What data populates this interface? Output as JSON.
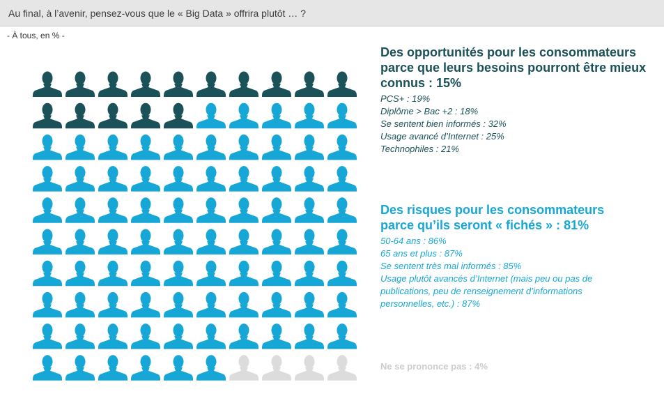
{
  "header": {
    "question": "Au final, à l’avenir, pensez-vous que le « Big Data » offrira plutôt … ?"
  },
  "base": "- À tous, en % -",
  "colors": {
    "opportunities": "#1b5158",
    "risks": "#17a7d6",
    "no_answer": "#dcdcdc"
  },
  "icon": "person-icon",
  "chart_data": {
    "type": "icon-array",
    "total": 100,
    "rows": 10,
    "cols": 10,
    "series": [
      {
        "name": "Des opportunités pour les consommateurs parce que leurs besoins pourront être mieux connus",
        "value": 15,
        "color": "#1b5158"
      },
      {
        "name": "Des risques pour les consommateurs parce qu’ils seront « fichés »",
        "value": 81,
        "color": "#17a7d6"
      },
      {
        "name": "Ne se prononce pas",
        "value": 4,
        "color": "#dcdcdc"
      }
    ]
  },
  "opportunities": {
    "title": "Des opportunités pour les consommateurs parce que leurs besoins pourront être mieux connus : 15%",
    "details": [
      "PCS+ : 19%",
      "Diplôme > Bac +2 : 18%",
      "Se sentent bien informés : 32%",
      "Usage avancé d’Internet : 25%",
      "Technophiles : 21%"
    ]
  },
  "risks": {
    "title": "Des risques pour les consommateurs parce qu’ils seront « fichés » : 81%",
    "details": [
      "50-64 ans : 86%",
      "65 ans et plus : 87%",
      "Se sentent très mal informés : 85%",
      "Usage plutôt avancés d’Internet (mais peu ou pas de publications, peu de renseignement d’informations personnelles, etc.) : 87%"
    ]
  },
  "no_answer": {
    "label": "Ne se prononce pas : 4%"
  }
}
